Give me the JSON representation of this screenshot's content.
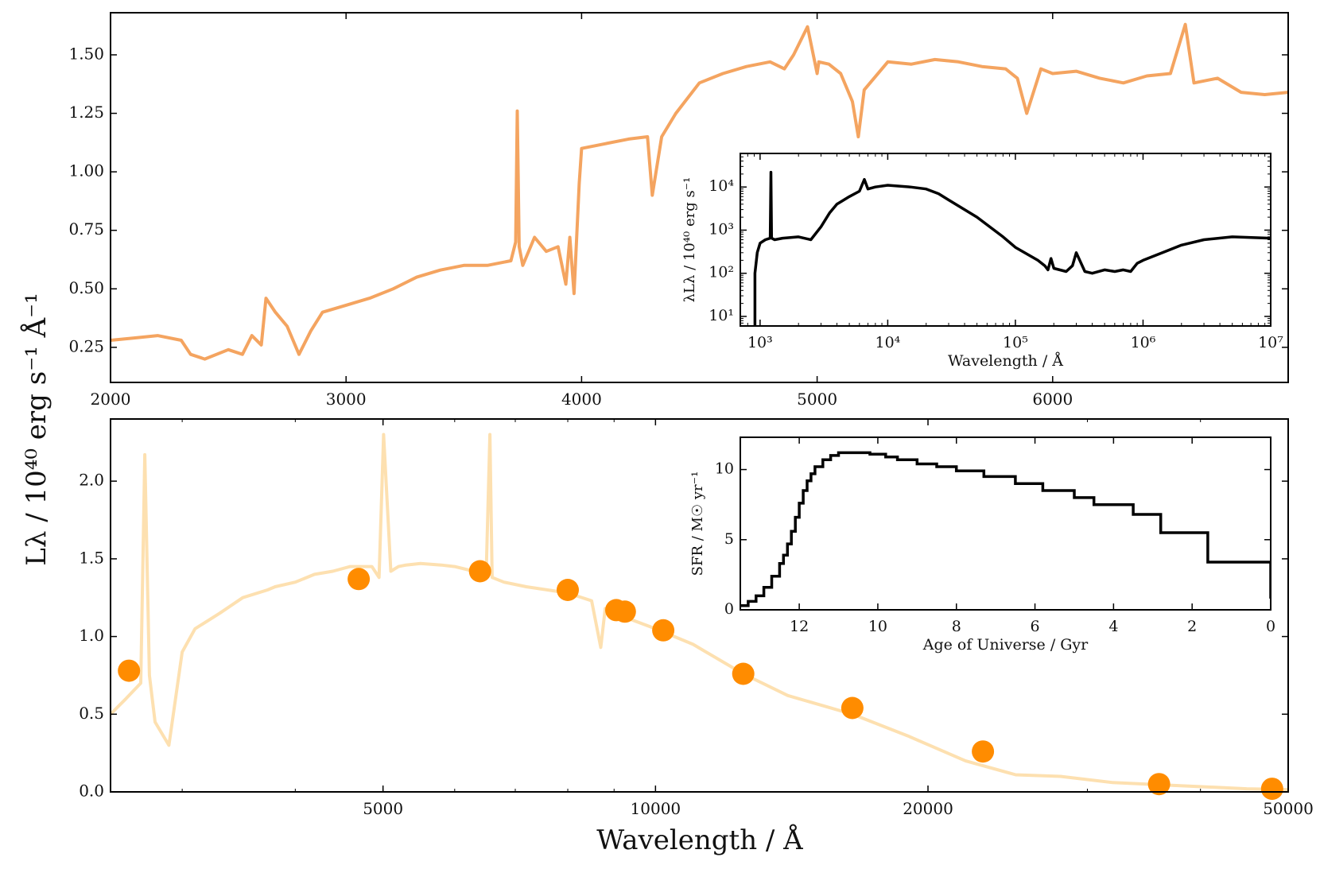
{
  "figure": {
    "shared_ylabel": "Lλ / 10⁴⁰ erg s⁻¹ Å⁻¹",
    "shared_xlabel": "Wavelength / Å"
  },
  "colors": {
    "spectrum_top": "#f4a460",
    "spectrum_bottom": "#fde0b0",
    "photometry": "#ff8c00",
    "inset_line": "#000000"
  },
  "chart_data": [
    {
      "id": "top",
      "type": "line",
      "title": "",
      "xlabel": "",
      "ylabel": "",
      "xlim": [
        2000,
        7000
      ],
      "ylim": [
        0.1,
        1.68
      ],
      "xticks": [
        2000,
        3000,
        4000,
        5000,
        6000
      ],
      "xtick_labels": [
        "2000",
        "3000",
        "4000",
        "5000",
        "6000"
      ],
      "yticks": [
        0.25,
        0.5,
        0.75,
        1.0,
        1.25,
        1.5
      ],
      "ytick_labels": [
        "0.25",
        "0.50",
        "0.75",
        "1.00",
        "1.25",
        "1.50"
      ],
      "series": [
        {
          "name": "spectrum",
          "x": [
            2000,
            2100,
            2200,
            2300,
            2340,
            2400,
            2500,
            2560,
            2600,
            2640,
            2660,
            2700,
            2750,
            2800,
            2850,
            2900,
            3000,
            3100,
            3200,
            3300,
            3400,
            3500,
            3600,
            3700,
            3720,
            3727,
            3735,
            3750,
            3800,
            3850,
            3900,
            3933,
            3950,
            3968,
            3990,
            4000,
            4100,
            4200,
            4280,
            4300,
            4340,
            4400,
            4500,
            4600,
            4700,
            4800,
            4861,
            4900,
            4959,
            5000,
            5007,
            5050,
            5100,
            5150,
            5175,
            5200,
            5300,
            5400,
            5500,
            5600,
            5700,
            5800,
            5850,
            5890,
            5950,
            6000,
            6100,
            6200,
            6300,
            6400,
            6500,
            6563,
            6600,
            6700,
            6800,
            6900,
            7000
          ],
          "y": [
            0.28,
            0.29,
            0.3,
            0.28,
            0.22,
            0.2,
            0.24,
            0.22,
            0.3,
            0.26,
            0.46,
            0.4,
            0.34,
            0.22,
            0.32,
            0.4,
            0.43,
            0.46,
            0.5,
            0.55,
            0.58,
            0.6,
            0.6,
            0.62,
            0.7,
            1.26,
            0.68,
            0.6,
            0.72,
            0.66,
            0.68,
            0.52,
            0.72,
            0.48,
            0.95,
            1.1,
            1.12,
            1.14,
            1.15,
            0.9,
            1.15,
            1.25,
            1.38,
            1.42,
            1.45,
            1.47,
            1.44,
            1.5,
            1.62,
            1.42,
            1.47,
            1.46,
            1.42,
            1.3,
            1.15,
            1.35,
            1.47,
            1.46,
            1.48,
            1.47,
            1.45,
            1.44,
            1.4,
            1.25,
            1.44,
            1.42,
            1.43,
            1.4,
            1.38,
            1.41,
            1.42,
            1.63,
            1.38,
            1.4,
            1.34,
            1.33,
            1.34
          ]
        }
      ]
    },
    {
      "id": "bottom",
      "type": "line+scatter",
      "title": "",
      "xlabel": "Wavelength / Å",
      "ylabel": "Lλ / 10⁴⁰ erg s⁻¹ Å⁻¹",
      "xscale": "log",
      "xlim": [
        2500,
        50000
      ],
      "ylim": [
        0,
        2.4
      ],
      "xticks": [
        5000,
        10000,
        20000,
        50000
      ],
      "xtick_labels": [
        "5000",
        "10000",
        "20000",
        "50000"
      ],
      "yticks": [
        0,
        0.5,
        1.0,
        1.5,
        2.0
      ],
      "ytick_labels": [
        "0.0",
        "0.5",
        "1.0",
        "1.5",
        "2.0"
      ],
      "series": [
        {
          "name": "spectrum",
          "x": [
            2500,
            2600,
            2700,
            2728,
            2760,
            2800,
            2900,
            3000,
            3100,
            3300,
            3500,
            3727,
            3800,
            4000,
            4200,
            4400,
            4600,
            4800,
            4861,
            4950,
            5007,
            5100,
            5200,
            5300,
            5500,
            5800,
            6000,
            6300,
            6500,
            6563,
            6600,
            6800,
            7200,
            7600,
            8000,
            8500,
            8700,
            8800,
            9000,
            10000,
            11000,
            12500,
            14000,
            16500,
            19000,
            22000,
            25000,
            28000,
            32000,
            38000,
            45000,
            50000
          ],
          "y": [
            0.5,
            0.6,
            0.7,
            2.17,
            0.75,
            0.45,
            0.3,
            0.9,
            1.05,
            1.15,
            1.25,
            1.3,
            1.32,
            1.35,
            1.4,
            1.42,
            1.45,
            1.45,
            1.45,
            1.38,
            2.3,
            1.42,
            1.45,
            1.46,
            1.47,
            1.46,
            1.45,
            1.42,
            1.4,
            2.3,
            1.38,
            1.35,
            1.32,
            1.3,
            1.28,
            1.23,
            0.93,
            1.18,
            1.15,
            1.05,
            0.95,
            0.76,
            0.62,
            0.5,
            0.36,
            0.2,
            0.11,
            0.1,
            0.06,
            0.04,
            0.02,
            0.015
          ]
        },
        {
          "name": "photometry",
          "x": [
            2620,
            4700,
            6400,
            8000,
            9050,
            9250,
            10200,
            12500,
            16500,
            23000,
            36000,
            48000
          ],
          "y": [
            0.78,
            1.37,
            1.42,
            1.3,
            1.17,
            1.16,
            1.04,
            0.76,
            0.54,
            0.26,
            0.05,
            0.02
          ]
        }
      ]
    },
    {
      "id": "inset_top",
      "type": "line",
      "title": "",
      "xlabel": "Wavelength / Å",
      "ylabel": "λLλ / 10⁴⁰ erg s⁻¹",
      "xscale": "log",
      "yscale": "log",
      "xlim": [
        700,
        10000000
      ],
      "ylim": [
        6,
        60000
      ],
      "xticks": [
        1000,
        10000,
        100000,
        1000000,
        10000000
      ],
      "xtick_labels": [
        "10³",
        "10⁴",
        "10⁵",
        "10⁶",
        "10⁷"
      ],
      "yticks": [
        10,
        100,
        1000,
        10000
      ],
      "ytick_labels": [
        "10¹",
        "10²",
        "10³",
        "10⁴"
      ],
      "series": [
        {
          "name": "sed",
          "x": [
            912,
            912,
            950,
            1000,
            1100,
            1200,
            1216,
            1230,
            1300,
            1500,
            2000,
            2500,
            3000,
            3500,
            4000,
            5000,
            6000,
            6563,
            7000,
            8000,
            10000,
            15000,
            20000,
            25000,
            30000,
            50000,
            80000,
            100000,
            150000,
            170000,
            180000,
            190000,
            200000,
            250000,
            280000,
            300000,
            350000,
            400000,
            500000,
            600000,
            700000,
            800000,
            900000,
            1000000,
            1500000,
            2000000,
            3000000,
            5000000,
            10000000
          ],
          "y": [
            6,
            100,
            300,
            500,
            600,
            650,
            22000,
            650,
            600,
            650,
            700,
            600,
            1200,
            2500,
            4000,
            6000,
            8000,
            15000,
            9000,
            10000,
            11000,
            10000,
            9000,
            7000,
            5000,
            2000,
            700,
            400,
            200,
            150,
            120,
            220,
            130,
            110,
            150,
            300,
            110,
            100,
            120,
            110,
            120,
            110,
            170,
            200,
            320,
            450,
            600,
            700,
            650
          ]
        }
      ]
    },
    {
      "id": "inset_bottom",
      "type": "line",
      "title": "",
      "xlabel": "Age of Universe / Gyr",
      "ylabel": "SFR / M☉ yr⁻¹",
      "xlim": [
        13.5,
        0
      ],
      "ylim": [
        0,
        12.3
      ],
      "xticks": [
        12,
        10,
        8,
        6,
        4,
        2,
        0
      ],
      "xtick_labels": [
        "12",
        "10",
        "8",
        "6",
        "4",
        "2",
        "0"
      ],
      "yticks": [
        0,
        5,
        10
      ],
      "ytick_labels": [
        "0",
        "5",
        "10"
      ],
      "series": [
        {
          "name": "sfh",
          "x": [
            13.5,
            13.3,
            13.1,
            12.9,
            12.7,
            12.5,
            12.4,
            12.3,
            12.2,
            12.1,
            12.0,
            11.9,
            11.8,
            11.7,
            11.6,
            11.4,
            11.2,
            11.0,
            10.8,
            10.5,
            10.2,
            9.8,
            9.5,
            9.0,
            8.5,
            8.0,
            7.3,
            6.5,
            5.8,
            5.0,
            4.5,
            3.5,
            2.8,
            1.6,
            0.0
          ],
          "y": [
            0.3,
            0.6,
            1.0,
            1.6,
            2.4,
            3.3,
            3.9,
            4.7,
            5.6,
            6.6,
            7.6,
            8.5,
            9.2,
            9.7,
            10.2,
            10.7,
            11.0,
            11.2,
            11.2,
            11.2,
            11.1,
            10.9,
            10.7,
            10.4,
            10.2,
            9.9,
            9.5,
            9.0,
            8.5,
            8.0,
            7.5,
            6.8,
            5.5,
            3.4,
            0.8
          ]
        }
      ]
    }
  ]
}
